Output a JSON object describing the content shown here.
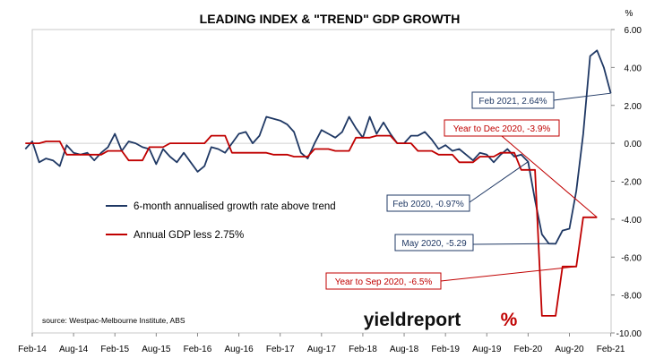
{
  "chart_data": {
    "type": "line",
    "title": "LEADING INDEX & \"TREND\" GDP GROWTH",
    "y_unit": "%",
    "ylim": [
      -10,
      6
    ],
    "y_ticks": [
      "6.00",
      "4.00",
      "2.00",
      "0.00",
      "-2.00",
      "-4.00",
      "-6.00",
      "-8.00",
      "-10.00"
    ],
    "y_tick_values": [
      6,
      4,
      2,
      0,
      -2,
      -4,
      -6,
      -8,
      -10
    ],
    "x_ticks": [
      "Feb-14",
      "Aug-14",
      "Feb-15",
      "Aug-15",
      "Feb-16",
      "Aug-16",
      "Feb-17",
      "Aug-17",
      "Feb-18",
      "Aug-18",
      "Feb-19",
      "Aug-19",
      "Feb-20",
      "Aug-20",
      "Feb-21"
    ],
    "x_tick_dates": [
      "2014-02",
      "2014-08",
      "2015-02",
      "2015-08",
      "2016-02",
      "2016-08",
      "2017-02",
      "2017-08",
      "2018-02",
      "2018-08",
      "2019-02",
      "2019-08",
      "2020-02",
      "2020-08",
      "2021-02"
    ],
    "legend_position": "inside-left",
    "series": [
      {
        "name": "6-month annualised growth rate above trend",
        "color": "#1f3864",
        "points": [
          [
            "2014-01",
            -0.3
          ],
          [
            "2014-02",
            0.1
          ],
          [
            "2014-03",
            -1.0
          ],
          [
            "2014-04",
            -0.8
          ],
          [
            "2014-05",
            -0.9
          ],
          [
            "2014-06",
            -1.2
          ],
          [
            "2014-07",
            -0.1
          ],
          [
            "2014-08",
            -0.5
          ],
          [
            "2014-09",
            -0.6
          ],
          [
            "2014-10",
            -0.5
          ],
          [
            "2014-11",
            -0.9
          ],
          [
            "2014-12",
            -0.5
          ],
          [
            "2015-01",
            -0.2
          ],
          [
            "2015-02",
            0.5
          ],
          [
            "2015-03",
            -0.4
          ],
          [
            "2015-04",
            0.1
          ],
          [
            "2015-05",
            0.0
          ],
          [
            "2015-06",
            -0.2
          ],
          [
            "2015-07",
            -0.3
          ],
          [
            "2015-08",
            -1.1
          ],
          [
            "2015-09",
            -0.3
          ],
          [
            "2015-10",
            -0.7
          ],
          [
            "2015-11",
            -1.0
          ],
          [
            "2015-12",
            -0.5
          ],
          [
            "2016-01",
            -1.0
          ],
          [
            "2016-02",
            -1.5
          ],
          [
            "2016-03",
            -1.2
          ],
          [
            "2016-04",
            -0.2
          ],
          [
            "2016-05",
            -0.3
          ],
          [
            "2016-06",
            -0.5
          ],
          [
            "2016-07",
            0.0
          ],
          [
            "2016-08",
            0.5
          ],
          [
            "2016-09",
            0.6
          ],
          [
            "2016-10",
            0.0
          ],
          [
            "2016-11",
            0.4
          ],
          [
            "2016-12",
            1.4
          ],
          [
            "2017-01",
            1.3
          ],
          [
            "2017-02",
            1.2
          ],
          [
            "2017-03",
            1.0
          ],
          [
            "2017-04",
            0.6
          ],
          [
            "2017-05",
            -0.5
          ],
          [
            "2017-06",
            -0.8
          ],
          [
            "2017-07",
            0.0
          ],
          [
            "2017-08",
            0.7
          ],
          [
            "2017-09",
            0.5
          ],
          [
            "2017-10",
            0.3
          ],
          [
            "2017-11",
            0.6
          ],
          [
            "2017-12",
            1.4
          ],
          [
            "2018-01",
            0.8
          ],
          [
            "2018-02",
            0.3
          ],
          [
            "2018-03",
            1.4
          ],
          [
            "2018-04",
            0.5
          ],
          [
            "2018-05",
            1.1
          ],
          [
            "2018-06",
            0.5
          ],
          [
            "2018-07",
            0.0
          ],
          [
            "2018-08",
            0.0
          ],
          [
            "2018-09",
            0.4
          ],
          [
            "2018-10",
            0.4
          ],
          [
            "2018-11",
            0.6
          ],
          [
            "2018-12",
            0.2
          ],
          [
            "2019-01",
            -0.3
          ],
          [
            "2019-02",
            -0.1
          ],
          [
            "2019-03",
            -0.4
          ],
          [
            "2019-04",
            -0.3
          ],
          [
            "2019-05",
            -0.6
          ],
          [
            "2019-06",
            -0.9
          ],
          [
            "2019-07",
            -0.5
          ],
          [
            "2019-08",
            -0.6
          ],
          [
            "2019-09",
            -1.0
          ],
          [
            "2019-10",
            -0.6
          ],
          [
            "2019-11",
            -0.3
          ],
          [
            "2019-12",
            -0.7
          ],
          [
            "2020-01",
            -0.6
          ],
          [
            "2020-02",
            -0.97
          ],
          [
            "2020-03",
            -3.0
          ],
          [
            "2020-04",
            -4.8
          ],
          [
            "2020-05",
            -5.29
          ],
          [
            "2020-06",
            -5.3
          ],
          [
            "2020-07",
            -4.6
          ],
          [
            "2020-08",
            -4.5
          ],
          [
            "2020-09",
            -2.5
          ],
          [
            "2020-10",
            0.5
          ],
          [
            "2020-11",
            4.6
          ],
          [
            "2020-12",
            4.9
          ],
          [
            "2021-01",
            4.0
          ],
          [
            "2021-02",
            2.64
          ]
        ]
      },
      {
        "name": "Annual GDP less 2.75%",
        "color": "#c00000",
        "points": [
          [
            "2014-01",
            0.0
          ],
          [
            "2014-03",
            0.0
          ],
          [
            "2014-04",
            0.1
          ],
          [
            "2014-06",
            0.1
          ],
          [
            "2014-07",
            -0.6
          ],
          [
            "2014-09",
            -0.6
          ],
          [
            "2014-10",
            -0.6
          ],
          [
            "2014-12",
            -0.6
          ],
          [
            "2015-01",
            -0.4
          ],
          [
            "2015-03",
            -0.4
          ],
          [
            "2015-04",
            -0.9
          ],
          [
            "2015-06",
            -0.9
          ],
          [
            "2015-07",
            -0.2
          ],
          [
            "2015-09",
            -0.2
          ],
          [
            "2015-10",
            0.0
          ],
          [
            "2015-12",
            0.0
          ],
          [
            "2016-01",
            0.0
          ],
          [
            "2016-03",
            0.0
          ],
          [
            "2016-04",
            0.4
          ],
          [
            "2016-06",
            0.4
          ],
          [
            "2016-07",
            -0.5
          ],
          [
            "2016-09",
            -0.5
          ],
          [
            "2016-10",
            -0.5
          ],
          [
            "2016-12",
            -0.5
          ],
          [
            "2017-01",
            -0.6
          ],
          [
            "2017-03",
            -0.6
          ],
          [
            "2017-04",
            -0.7
          ],
          [
            "2017-06",
            -0.7
          ],
          [
            "2017-07",
            -0.3
          ],
          [
            "2017-09",
            -0.3
          ],
          [
            "2017-10",
            -0.4
          ],
          [
            "2017-12",
            -0.4
          ],
          [
            "2018-01",
            0.3
          ],
          [
            "2018-03",
            0.3
          ],
          [
            "2018-04",
            0.4
          ],
          [
            "2018-06",
            0.4
          ],
          [
            "2018-07",
            0.0
          ],
          [
            "2018-09",
            0.0
          ],
          [
            "2018-10",
            -0.4
          ],
          [
            "2018-12",
            -0.4
          ],
          [
            "2019-01",
            -0.6
          ],
          [
            "2019-03",
            -0.6
          ],
          [
            "2019-04",
            -1.0
          ],
          [
            "2019-06",
            -1.0
          ],
          [
            "2019-07",
            -0.7
          ],
          [
            "2019-09",
            -0.7
          ],
          [
            "2019-10",
            -0.5
          ],
          [
            "2019-12",
            -0.5
          ],
          [
            "2020-01",
            -1.4
          ],
          [
            "2020-03",
            -1.4
          ],
          [
            "2020-04",
            -9.1
          ],
          [
            "2020-06",
            -9.1
          ],
          [
            "2020-07",
            -6.5
          ],
          [
            "2020-09",
            -6.5
          ],
          [
            "2020-10",
            -3.9
          ],
          [
            "2020-12",
            -3.9
          ]
        ]
      }
    ],
    "annotations": [
      {
        "text": "Feb 2021, 2.64%",
        "color": "#1f3864",
        "anchor_date": "2021-02",
        "anchor_value": 2.64
      },
      {
        "text": "Year to Dec 2020, -3.9%",
        "color": "#c00000",
        "anchor_date": "2020-12",
        "anchor_value": -3.9
      },
      {
        "text": "Feb 2020, -0.97%",
        "color": "#1f3864",
        "anchor_date": "2020-02",
        "anchor_value": -0.97
      },
      {
        "text": "May 2020, -5.29",
        "color": "#1f3864",
        "anchor_date": "2020-05",
        "anchor_value": -5.29
      },
      {
        "text": "Year to Sep 2020, -6.5%",
        "color": "#c00000",
        "anchor_date": "2020-09",
        "anchor_value": -6.5
      }
    ],
    "source_note": "source: Westpac-Melbourne Institute, ABS"
  },
  "brand": {
    "name": "yieldreport",
    "symbol": "%"
  }
}
